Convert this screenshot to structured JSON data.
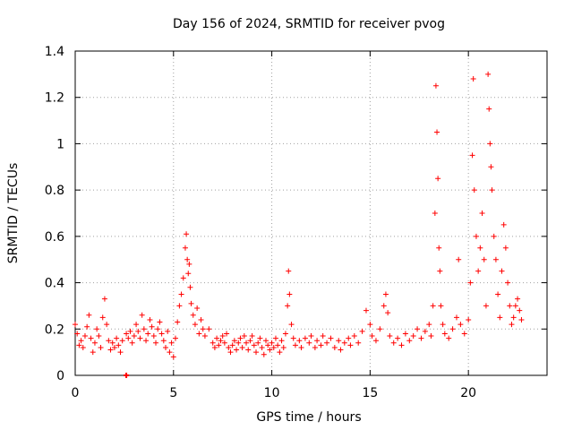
{
  "chart_data": {
    "type": "scatter",
    "title": "Day 156 of 2024, SRMTID for receiver pvog",
    "xlabel": "GPS time / hours",
    "ylabel": "SRMTID / TECUs",
    "xlim": [
      0,
      24
    ],
    "ylim": [
      0,
      1.4
    ],
    "x_ticks": [
      0,
      5,
      10,
      15,
      20
    ],
    "x_tick_labels": [
      "0",
      "5",
      "10",
      "15",
      "20"
    ],
    "y_ticks": [
      0,
      0.2,
      0.4,
      0.6,
      0.8,
      1.0,
      1.2,
      1.4
    ],
    "y_tick_labels": [
      "0",
      "0.2",
      "0.4",
      "0.6",
      "0.8",
      "1",
      "1.2",
      "1.4"
    ],
    "grid": true,
    "marker": "plus",
    "color": "#ff0000",
    "series": [
      {
        "name": "SRMTID",
        "points": [
          [
            0.0,
            0.22
          ],
          [
            0.1,
            0.18
          ],
          [
            0.2,
            0.13
          ],
          [
            0.3,
            0.15
          ],
          [
            0.4,
            0.12
          ],
          [
            0.5,
            0.17
          ],
          [
            0.6,
            0.21
          ],
          [
            0.7,
            0.26
          ],
          [
            0.8,
            0.16
          ],
          [
            0.9,
            0.1
          ],
          [
            1.0,
            0.14
          ],
          [
            1.1,
            0.2
          ],
          [
            1.2,
            0.17
          ],
          [
            1.3,
            0.12
          ],
          [
            1.4,
            0.25
          ],
          [
            1.5,
            0.33
          ],
          [
            1.6,
            0.22
          ],
          [
            1.7,
            0.15
          ],
          [
            1.8,
            0.11
          ],
          [
            1.9,
            0.14
          ],
          [
            2.0,
            0.12
          ],
          [
            2.1,
            0.16
          ],
          [
            2.2,
            0.13
          ],
          [
            2.3,
            0.1
          ],
          [
            2.4,
            0.15
          ],
          [
            2.6,
            0.18
          ],
          [
            2.7,
            0.16
          ],
          [
            2.8,
            0.19
          ],
          [
            2.9,
            0.14
          ],
          [
            3.0,
            0.17
          ],
          [
            3.1,
            0.22
          ],
          [
            3.2,
            0.19
          ],
          [
            3.3,
            0.16
          ],
          [
            3.4,
            0.26
          ],
          [
            3.5,
            0.2
          ],
          [
            3.6,
            0.15
          ],
          [
            3.7,
            0.18
          ],
          [
            3.8,
            0.24
          ],
          [
            3.9,
            0.21
          ],
          [
            4.0,
            0.17
          ],
          [
            4.1,
            0.14
          ],
          [
            4.2,
            0.2
          ],
          [
            4.3,
            0.23
          ],
          [
            4.4,
            0.18
          ],
          [
            4.5,
            0.15
          ],
          [
            4.6,
            0.12
          ],
          [
            4.7,
            0.19
          ],
          [
            4.8,
            0.1
          ],
          [
            4.9,
            0.14
          ],
          [
            5.0,
            0.08
          ],
          [
            5.1,
            0.16
          ],
          [
            5.2,
            0.23
          ],
          [
            5.3,
            0.3
          ],
          [
            5.4,
            0.35
          ],
          [
            5.5,
            0.42
          ],
          [
            5.6,
            0.55
          ],
          [
            5.65,
            0.61
          ],
          [
            5.7,
            0.5
          ],
          [
            5.75,
            0.44
          ],
          [
            5.8,
            0.48
          ],
          [
            5.85,
            0.38
          ],
          [
            5.9,
            0.31
          ],
          [
            6.0,
            0.26
          ],
          [
            6.1,
            0.22
          ],
          [
            6.2,
            0.29
          ],
          [
            6.3,
            0.18
          ],
          [
            6.4,
            0.24
          ],
          [
            6.5,
            0.2
          ],
          [
            6.6,
            0.17
          ],
          [
            6.8,
            0.2
          ],
          [
            7.0,
            0.14
          ],
          [
            7.1,
            0.12
          ],
          [
            7.2,
            0.16
          ],
          [
            7.3,
            0.13
          ],
          [
            7.4,
            0.15
          ],
          [
            7.5,
            0.17
          ],
          [
            7.6,
            0.14
          ],
          [
            7.7,
            0.18
          ],
          [
            7.8,
            0.12
          ],
          [
            7.9,
            0.1
          ],
          [
            8.0,
            0.13
          ],
          [
            8.1,
            0.15
          ],
          [
            8.2,
            0.11
          ],
          [
            8.3,
            0.14
          ],
          [
            8.4,
            0.16
          ],
          [
            8.5,
            0.12
          ],
          [
            8.6,
            0.17
          ],
          [
            8.7,
            0.14
          ],
          [
            8.8,
            0.11
          ],
          [
            8.9,
            0.15
          ],
          [
            9.0,
            0.17
          ],
          [
            9.1,
            0.13
          ],
          [
            9.2,
            0.1
          ],
          [
            9.3,
            0.14
          ],
          [
            9.4,
            0.16
          ],
          [
            9.5,
            0.12
          ],
          [
            9.6,
            0.09
          ],
          [
            9.7,
            0.15
          ],
          [
            9.8,
            0.13
          ],
          [
            9.9,
            0.11
          ],
          [
            10.0,
            0.14
          ],
          [
            10.1,
            0.12
          ],
          [
            10.2,
            0.16
          ],
          [
            10.3,
            0.13
          ],
          [
            10.4,
            0.1
          ],
          [
            10.5,
            0.15
          ],
          [
            10.6,
            0.12
          ],
          [
            10.7,
            0.18
          ],
          [
            10.8,
            0.3
          ],
          [
            10.85,
            0.45
          ],
          [
            10.9,
            0.35
          ],
          [
            11.0,
            0.22
          ],
          [
            11.1,
            0.16
          ],
          [
            11.2,
            0.13
          ],
          [
            11.4,
            0.15
          ],
          [
            11.5,
            0.12
          ],
          [
            11.7,
            0.16
          ],
          [
            11.9,
            0.14
          ],
          [
            12.0,
            0.17
          ],
          [
            12.2,
            0.12
          ],
          [
            12.3,
            0.15
          ],
          [
            12.5,
            0.13
          ],
          [
            12.6,
            0.17
          ],
          [
            12.8,
            0.14
          ],
          [
            13.0,
            0.16
          ],
          [
            13.2,
            0.12
          ],
          [
            13.4,
            0.15
          ],
          [
            13.5,
            0.11
          ],
          [
            13.7,
            0.14
          ],
          [
            13.9,
            0.16
          ],
          [
            14.0,
            0.13
          ],
          [
            14.2,
            0.17
          ],
          [
            14.4,
            0.14
          ],
          [
            14.6,
            0.19
          ],
          [
            14.8,
            0.28
          ],
          [
            15.0,
            0.22
          ],
          [
            15.1,
            0.17
          ],
          [
            15.3,
            0.15
          ],
          [
            15.5,
            0.2
          ],
          [
            15.7,
            0.3
          ],
          [
            15.8,
            0.35
          ],
          [
            15.9,
            0.27
          ],
          [
            16.0,
            0.17
          ],
          [
            16.2,
            0.14
          ],
          [
            16.4,
            0.16
          ],
          [
            16.6,
            0.13
          ],
          [
            16.8,
            0.18
          ],
          [
            17.0,
            0.15
          ],
          [
            17.2,
            0.17
          ],
          [
            17.4,
            0.2
          ],
          [
            17.6,
            0.16
          ],
          [
            17.8,
            0.19
          ],
          [
            18.0,
            0.22
          ],
          [
            18.1,
            0.17
          ],
          [
            18.2,
            0.3
          ],
          [
            18.3,
            0.7
          ],
          [
            18.35,
            1.25
          ],
          [
            18.4,
            1.05
          ],
          [
            18.45,
            0.85
          ],
          [
            18.5,
            0.55
          ],
          [
            18.55,
            0.45
          ],
          [
            18.6,
            0.3
          ],
          [
            18.7,
            0.22
          ],
          [
            18.8,
            0.18
          ],
          [
            19.0,
            0.16
          ],
          [
            19.2,
            0.2
          ],
          [
            19.4,
            0.25
          ],
          [
            19.5,
            0.5
          ],
          [
            19.6,
            0.22
          ],
          [
            19.8,
            0.18
          ],
          [
            20.0,
            0.24
          ],
          [
            20.1,
            0.4
          ],
          [
            20.2,
            0.95
          ],
          [
            20.25,
            1.28
          ],
          [
            20.3,
            0.8
          ],
          [
            20.4,
            0.6
          ],
          [
            20.5,
            0.45
          ],
          [
            20.6,
            0.55
          ],
          [
            20.7,
            0.7
          ],
          [
            20.8,
            0.5
          ],
          [
            20.9,
            0.3
          ],
          [
            21.0,
            1.3
          ],
          [
            21.05,
            1.15
          ],
          [
            21.1,
            1.0
          ],
          [
            21.15,
            0.9
          ],
          [
            21.2,
            0.8
          ],
          [
            21.3,
            0.6
          ],
          [
            21.4,
            0.5
          ],
          [
            21.5,
            0.35
          ],
          [
            21.6,
            0.25
          ],
          [
            21.7,
            0.45
          ],
          [
            21.8,
            0.65
          ],
          [
            21.9,
            0.55
          ],
          [
            22.0,
            0.4
          ],
          [
            22.1,
            0.3
          ],
          [
            22.2,
            0.22
          ],
          [
            22.3,
            0.25
          ],
          [
            22.4,
            0.3
          ],
          [
            22.5,
            0.33
          ],
          [
            22.6,
            0.28
          ],
          [
            22.7,
            0.24
          ]
        ],
        "outlier_points": [
          [
            2.6,
            0.0
          ]
        ]
      }
    ]
  }
}
